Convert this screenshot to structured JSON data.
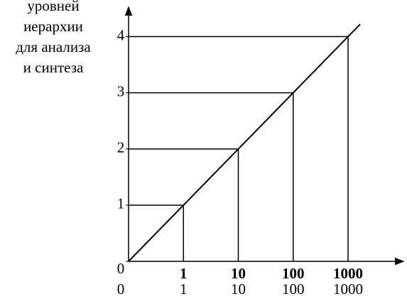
{
  "chart_data": {
    "type": "line",
    "y_label": [
      "уровней",
      "иерархии",
      "для анализа",
      "и синтеза"
    ],
    "categories": [
      "0",
      "1",
      "10",
      "100",
      "1000"
    ],
    "categories_top": [
      null,
      "1",
      "10",
      "100",
      "1000"
    ],
    "series": [
      {
        "color": "#000000",
        "values": [
          0,
          1,
          2,
          3,
          4
        ]
      }
    ],
    "ylim": [
      0,
      4.5
    ],
    "yticks": [
      0,
      1,
      2,
      3,
      4
    ],
    "guides": true
  }
}
